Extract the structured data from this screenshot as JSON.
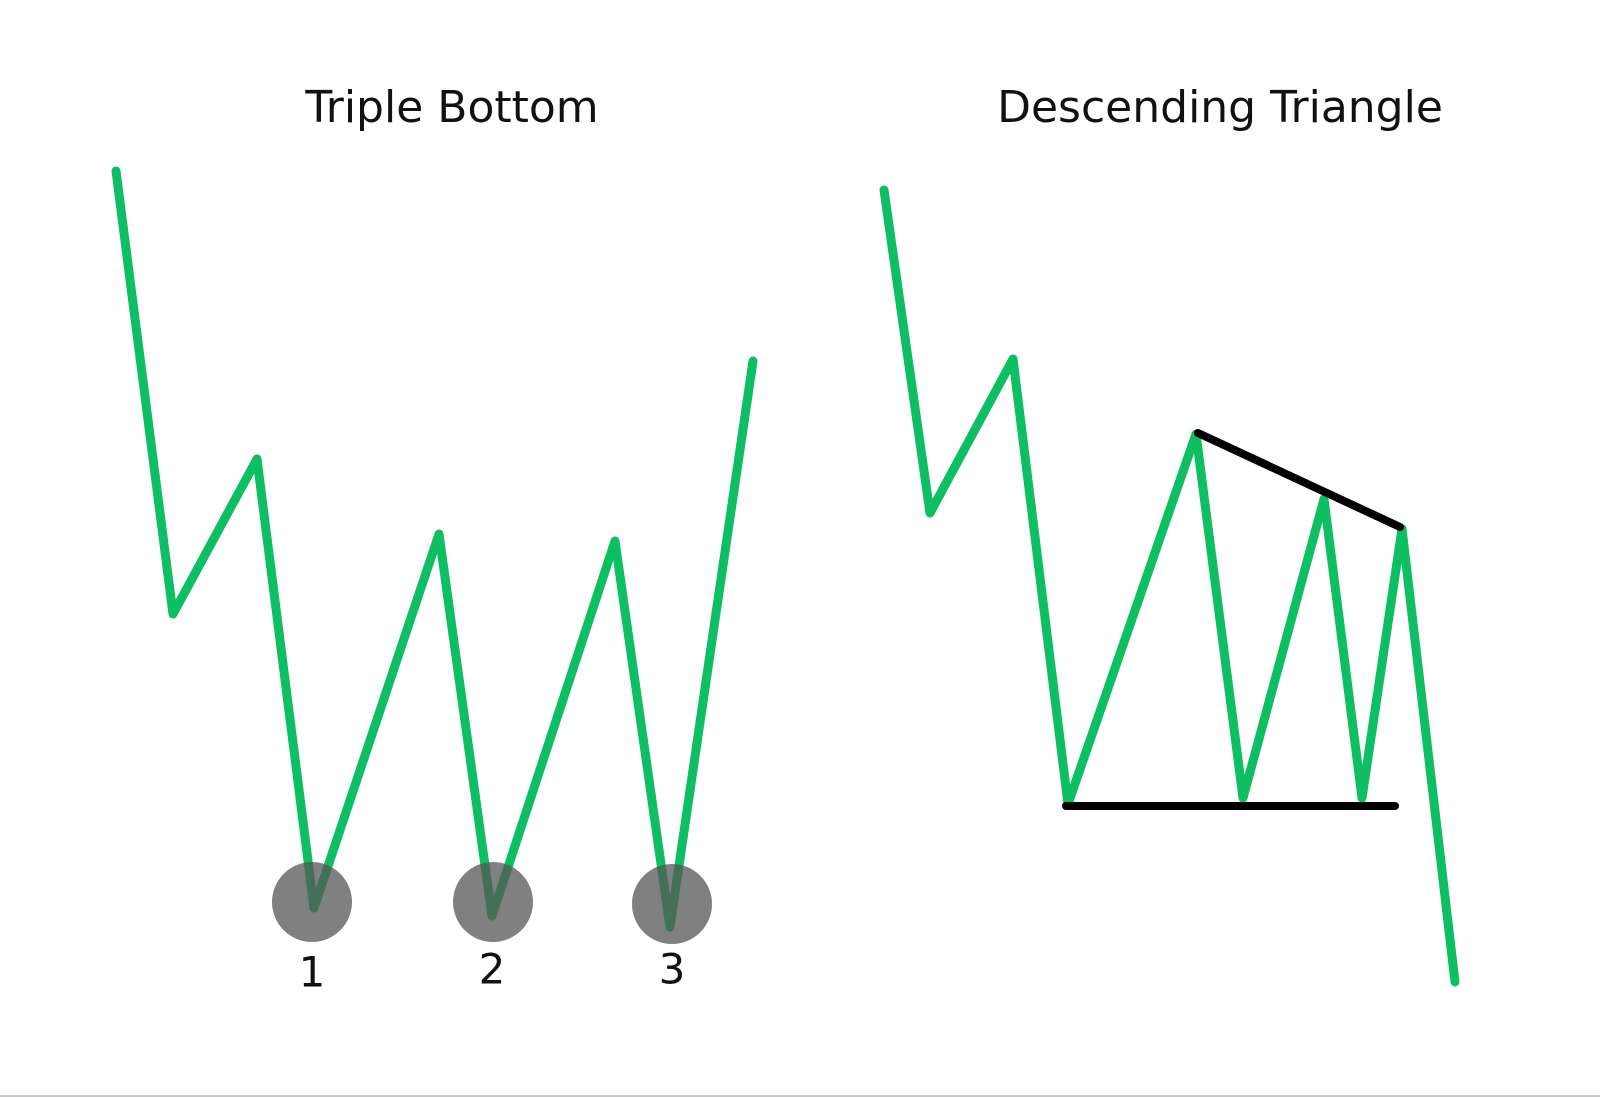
{
  "left": {
    "title": "Triple Bottom",
    "labels": [
      "1",
      "2",
      "3"
    ]
  },
  "right": {
    "title": "Descending Triangle"
  }
}
